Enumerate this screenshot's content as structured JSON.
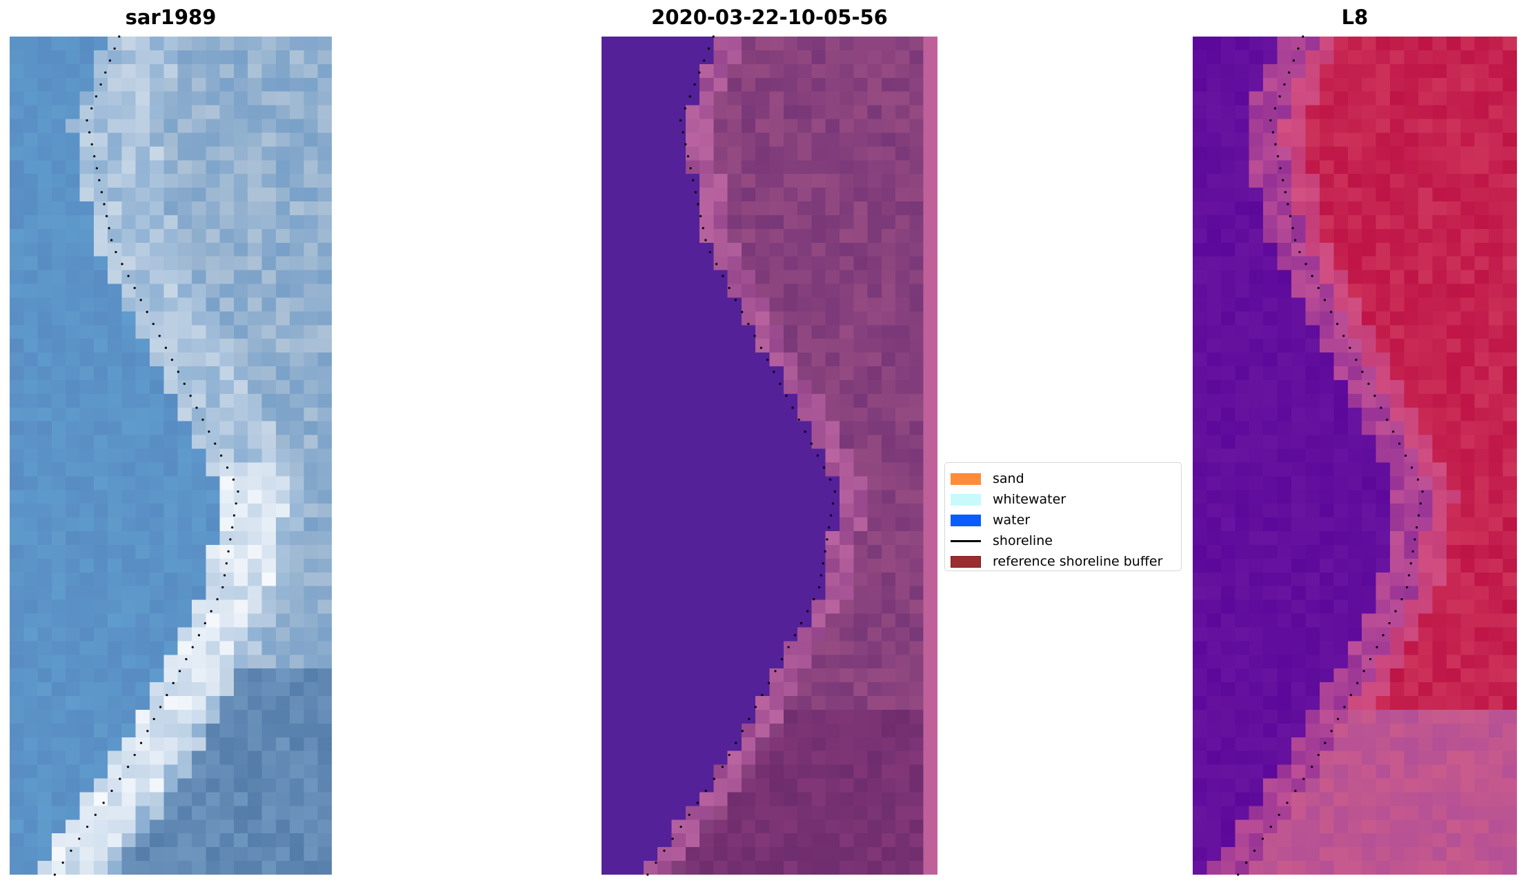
{
  "chart_data": {
    "type": "heatmap",
    "panels": [
      {
        "title": "sar1989",
        "kind": "rgb-image"
      },
      {
        "title": "2020-03-22-10-05-56",
        "kind": "classified-image"
      },
      {
        "title": "L8",
        "kind": "false-color-image"
      }
    ],
    "legend": {
      "placement": "center",
      "entries": [
        {
          "label": "sand",
          "type": "patch",
          "color": "#ff8c3b"
        },
        {
          "label": "whitewater",
          "type": "patch",
          "color": "#c8fafc"
        },
        {
          "label": "water",
          "type": "patch",
          "color": "#0a5cff"
        },
        {
          "label": "shoreline",
          "type": "line",
          "color": "#000000"
        },
        {
          "label": "reference shoreline buffer",
          "type": "patch",
          "color": "#9a2e2e"
        }
      ]
    },
    "shoreline_style": "black dotted",
    "axes_visible": false
  }
}
